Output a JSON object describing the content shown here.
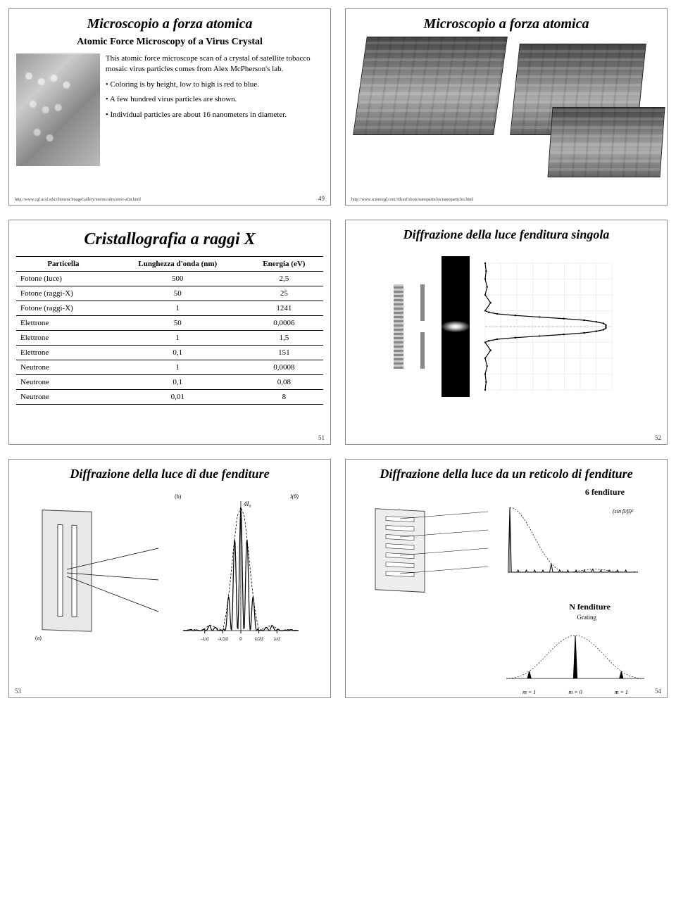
{
  "colors": {
    "text": "#000000",
    "border": "#888888",
    "bg": "#ffffff",
    "afm_gray": "#999999",
    "plot_line": "#000000",
    "grid": "#cccccc"
  },
  "slide1": {
    "title": "Microscopio a forza atomica",
    "subtitle": "Atomic Force Microscopy of a Virus Crystal",
    "bullet1": "This atomic force microscope scan of a crystal of satellite tobacco mosaic virus particles comes from Alex McPherson's lab.",
    "bullet2": "Coloring is by height, low to high is red to blue.",
    "bullet3": "A few hundred virus particles are shown.",
    "bullet4": "Individual particles are about 16 nanometers in diameter.",
    "url": "http://www.cgl.ucsf.edu/chimera/ImageGallery/entries/afm/stmv-afm.html",
    "num": "49"
  },
  "slide2": {
    "title": "Microscopio a forza atomica",
    "url": "http://www.sciencegl.com/3dsurf/shots/nanoparticles/nanoparticles.html"
  },
  "slide3": {
    "title": "Cristallografia a raggi X",
    "columns": [
      "Particella",
      "Lunghezza d'onda (nm)",
      "Energia (eV)"
    ],
    "rows": [
      [
        "Fotone (luce)",
        "500",
        "2,5"
      ],
      [
        "Fotone (raggi-X)",
        "50",
        "25"
      ],
      [
        "Fotone (raggi-X)",
        "1",
        "1241"
      ],
      [
        "Elettrone",
        "50",
        "0,0006"
      ],
      [
        "Elettrone",
        "1",
        "1,5"
      ],
      [
        "Elettrone",
        "0,1",
        "151"
      ],
      [
        "Neutrone",
        "1",
        "0,0008"
      ],
      [
        "Neutrone",
        "0,1",
        "0,08"
      ],
      [
        "Neutrone",
        "0,01",
        "8"
      ]
    ],
    "num": "51"
  },
  "slide4": {
    "title": "Diffrazione della luce fenditura singola",
    "num": "52",
    "intensity_curve": {
      "type": "line",
      "xlim": [
        -4,
        4
      ],
      "ylim": [
        0,
        1.05
      ],
      "points": [
        [
          -4,
          0
        ],
        [
          -3.5,
          0.008
        ],
        [
          -3,
          0
        ],
        [
          -2.5,
          0.016
        ],
        [
          -2,
          0
        ],
        [
          -1.5,
          0.045
        ],
        [
          -1,
          0
        ],
        [
          -0.9,
          0.03
        ],
        [
          -0.8,
          0.1
        ],
        [
          -0.7,
          0.25
        ],
        [
          -0.6,
          0.45
        ],
        [
          -0.5,
          0.65
        ],
        [
          -0.4,
          0.82
        ],
        [
          -0.3,
          0.92
        ],
        [
          -0.2,
          0.98
        ],
        [
          -0.1,
          1.0
        ],
        [
          0,
          1.0
        ],
        [
          0.1,
          1.0
        ],
        [
          0.2,
          0.98
        ],
        [
          0.3,
          0.92
        ],
        [
          0.4,
          0.82
        ],
        [
          0.5,
          0.65
        ],
        [
          0.6,
          0.45
        ],
        [
          0.7,
          0.25
        ],
        [
          0.8,
          0.1
        ],
        [
          0.9,
          0.03
        ],
        [
          1,
          0
        ],
        [
          1.5,
          0.045
        ],
        [
          2,
          0
        ],
        [
          2.5,
          0.016
        ],
        [
          3,
          0
        ],
        [
          3.5,
          0.008
        ],
        [
          4,
          0
        ]
      ],
      "color": "#000000",
      "grid_color": "#dddddd"
    }
  },
  "slide5": {
    "title": "Diffrazione della luce di due fenditure",
    "num": "53",
    "intensity_envelope": {
      "type": "line",
      "xlim": [
        -3.2,
        3.2
      ],
      "ylim": [
        0,
        4.2
      ],
      "center_label": "4I₀",
      "axis_ticks": [
        "-λ/d",
        "-λ/2d",
        "0",
        "λ/2d",
        "λ/d"
      ],
      "envelope_points": [
        [
          -3.2,
          0
        ],
        [
          -2.7,
          0.04
        ],
        [
          -2.2,
          0
        ],
        [
          -1.7,
          0.18
        ],
        [
          -1.0,
          0
        ],
        [
          -0.8,
          0.6
        ],
        [
          -0.6,
          1.5
        ],
        [
          -0.4,
          2.7
        ],
        [
          -0.2,
          3.7
        ],
        [
          0,
          4.0
        ],
        [
          0.2,
          3.7
        ],
        [
          0.4,
          2.7
        ],
        [
          0.6,
          1.5
        ],
        [
          0.8,
          0.6
        ],
        [
          1.0,
          0
        ],
        [
          1.7,
          0.18
        ],
        [
          2.2,
          0
        ],
        [
          2.7,
          0.04
        ],
        [
          3.2,
          0
        ]
      ],
      "fringes_period": 0.35,
      "color": "#000000"
    }
  },
  "slide6": {
    "title": "Diffrazione della luce da un reticolo di fenditure",
    "label_six": "6 fenditure",
    "label_n": "N fenditure",
    "label_grating": "Grating",
    "num": "54",
    "six_slit_plot": {
      "type": "line",
      "xlim": [
        0,
        6.5
      ],
      "ylim": [
        0,
        36
      ],
      "peaks_x": [
        0,
        2.1,
        4.2,
        6.3
      ],
      "peak_height": 36,
      "minor_height": 1.2,
      "minor_count": 4,
      "envelope_decay": true,
      "color": "#000000",
      "formula_label": "(sin β/β)²"
    },
    "n_slit_plot": {
      "type": "line",
      "peaks": [
        {
          "x": -1,
          "label": "m = 1"
        },
        {
          "x": 0,
          "label": "m = 0"
        },
        {
          "x": 1,
          "label": "m = 1"
        }
      ],
      "color": "#000000"
    }
  }
}
